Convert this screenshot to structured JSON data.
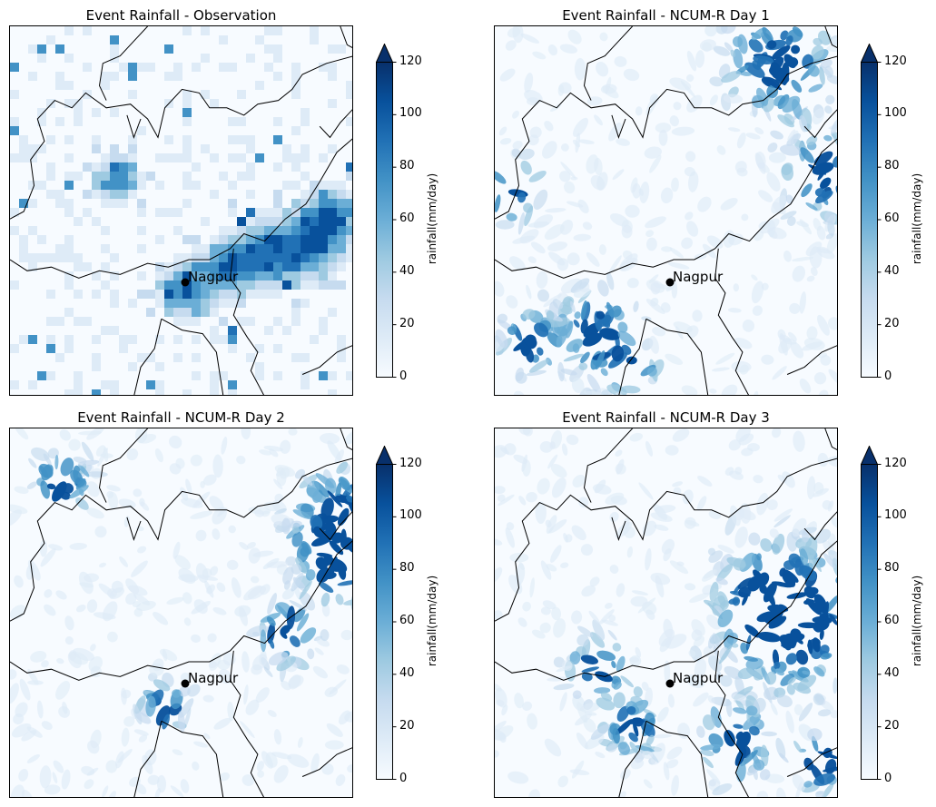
{
  "panels": [
    {
      "title": "Event Rainfall - Observation",
      "city": "Nagpur",
      "colorbar_label": "rainfall(mm/day)",
      "style": "grid"
    },
    {
      "title": "Event Rainfall - NCUM-R Day 1",
      "city": "Nagpur",
      "colorbar_label": "rainfall(mm/day)",
      "style": "smooth"
    },
    {
      "title": "Event Rainfall - NCUM-R Day 2",
      "city": "Nagpur",
      "colorbar_label": "rainfall(mm/day)",
      "style": "smooth"
    },
    {
      "title": "Event Rainfall - NCUM-R Day 3",
      "city": "Nagpur",
      "colorbar_label": "rainfall(mm/day)",
      "style": "smooth"
    }
  ],
  "colorbar": {
    "ticks": [
      "0",
      "20",
      "40",
      "60",
      "80",
      "100",
      "120"
    ],
    "min": 0,
    "max": 120,
    "extend": "max",
    "colormap": "Blues",
    "colors": [
      "#f7fbff",
      "#deebf7",
      "#c6dbef",
      "#9ecae1",
      "#6baed6",
      "#4292c6",
      "#2171b5",
      "#08519c",
      "#08306b"
    ]
  }
}
